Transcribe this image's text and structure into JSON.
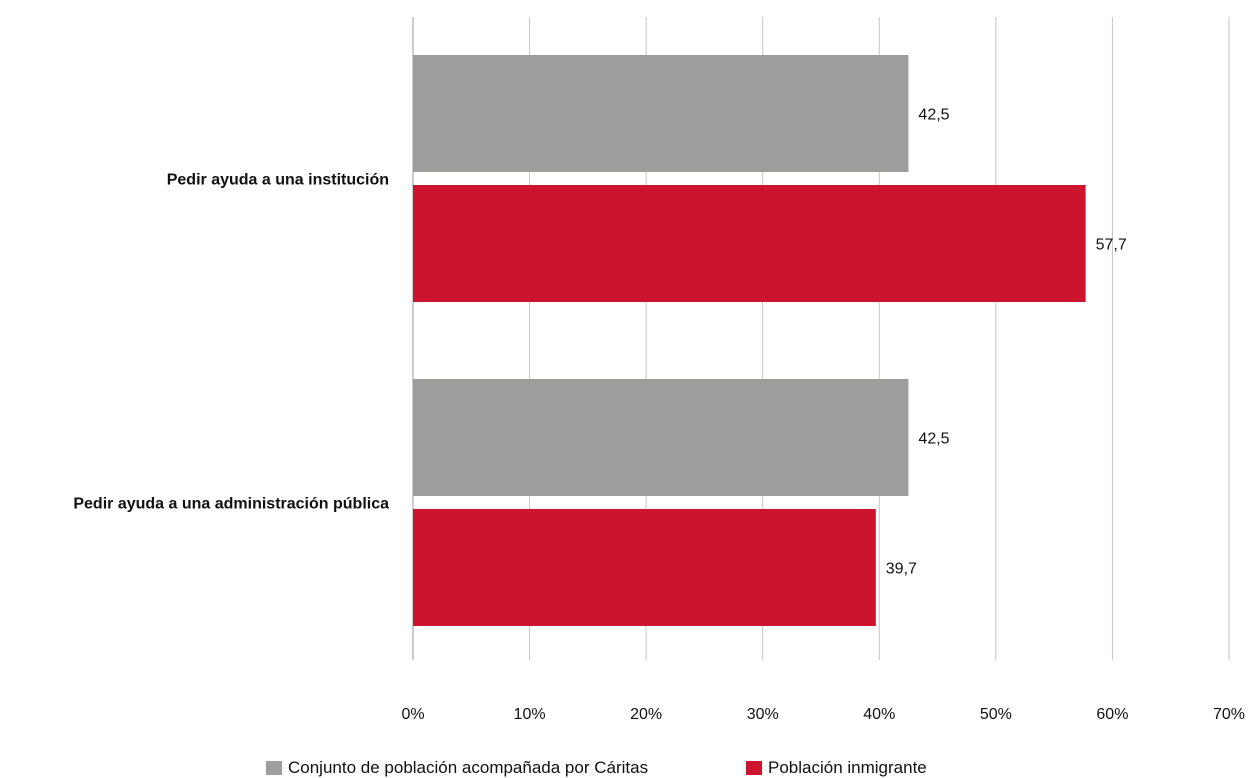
{
  "chart_data": {
    "type": "bar",
    "orientation": "horizontal",
    "categories": [
      "Pedir ayuda a una institución",
      "Pedir ayuda a una administración pública"
    ],
    "series": [
      {
        "name": "Conjunto de población acompañada por Cáritas",
        "color": "#9d9d9b",
        "values": [
          42.5,
          42.5
        ],
        "labels": [
          "42,5",
          "42,5"
        ]
      },
      {
        "name": "Población inmigrante",
        "color": "#cc142e",
        "values": [
          57.7,
          39.7
        ],
        "labels": [
          "57,7",
          "39,7"
        ]
      }
    ],
    "xlim": [
      0,
      70
    ],
    "xticks": [
      0,
      10,
      20,
      30,
      40,
      50,
      60,
      70
    ],
    "xtick_labels": [
      "0%",
      "10%",
      "20%",
      "30%",
      "40%",
      "50%",
      "60%",
      "70%"
    ],
    "grid": true,
    "legend_position": "bottom"
  }
}
